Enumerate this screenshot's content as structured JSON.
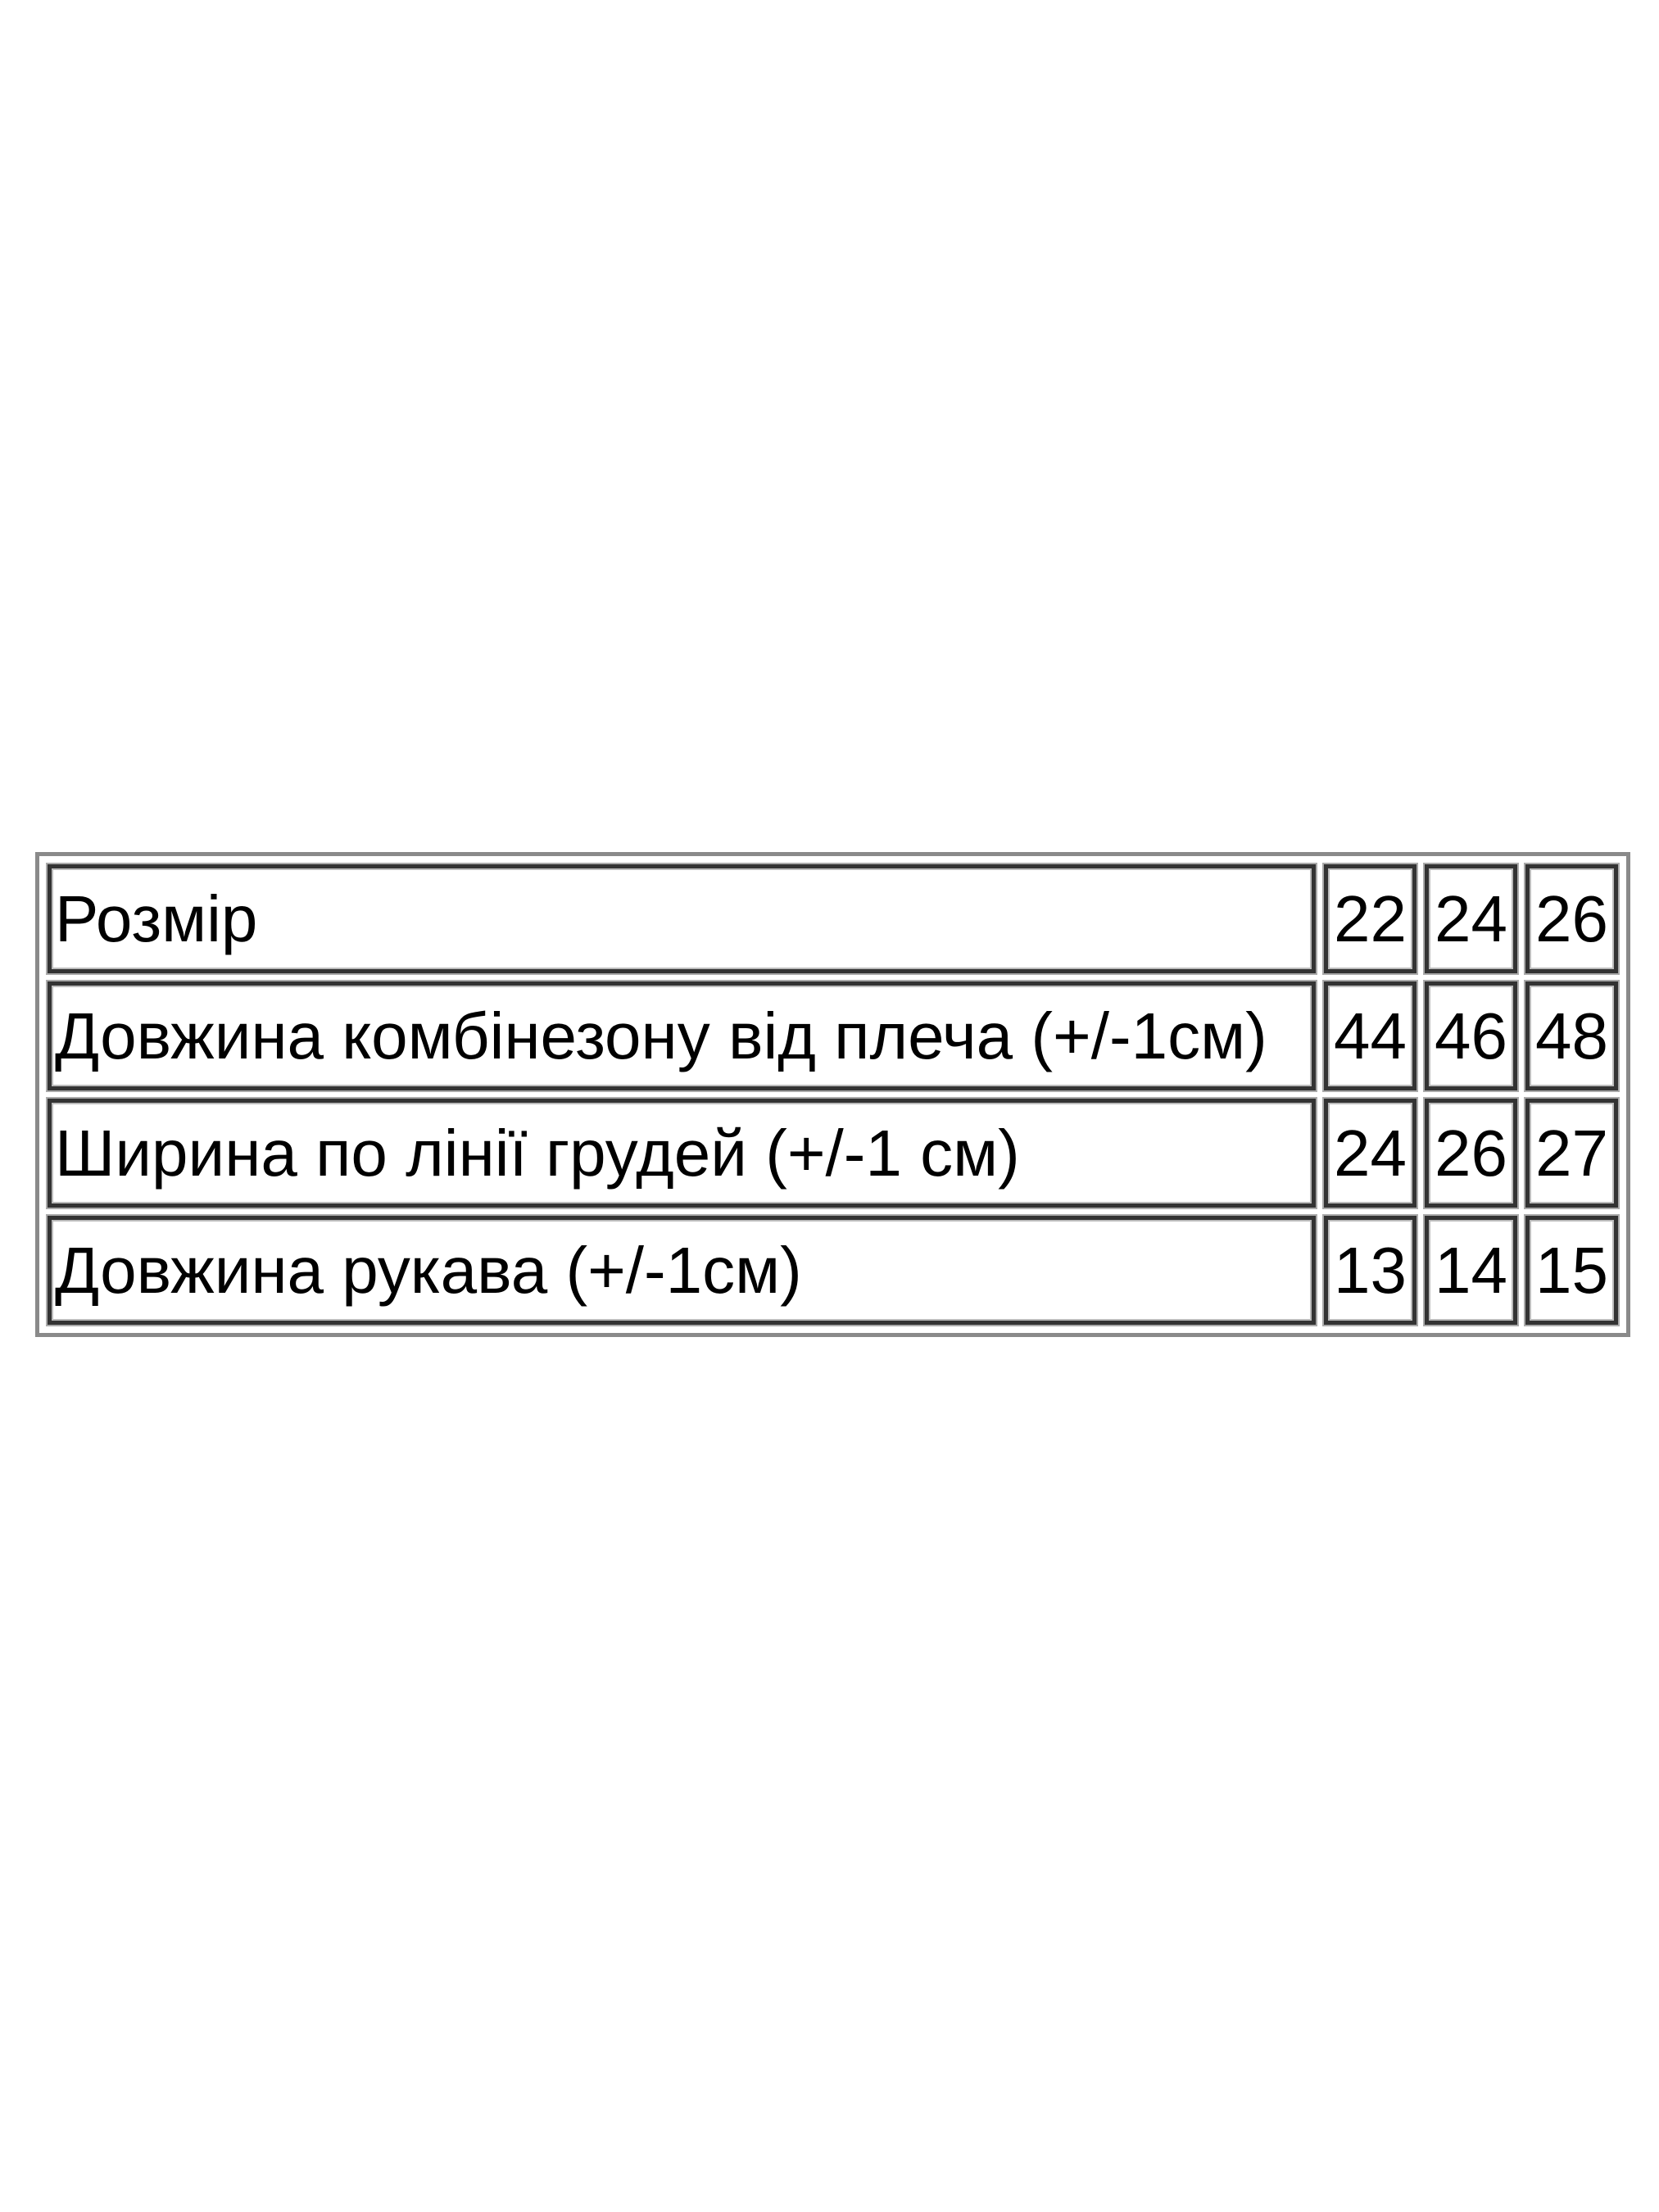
{
  "table": {
    "rows": [
      {
        "label": "Розмір",
        "values": [
          "22",
          "24",
          "26"
        ]
      },
      {
        "label": "Довжина комбінезону від плеча (+/-1см)",
        "values": [
          "44",
          "46",
          "48"
        ]
      },
      {
        "label": "Ширина по лінії грудей (+/-1 см)",
        "values": [
          "24",
          "26",
          "27"
        ]
      },
      {
        "label": "Довжина рукава (+/-1см)",
        "values": [
          "13",
          "14",
          "15"
        ]
      }
    ]
  }
}
